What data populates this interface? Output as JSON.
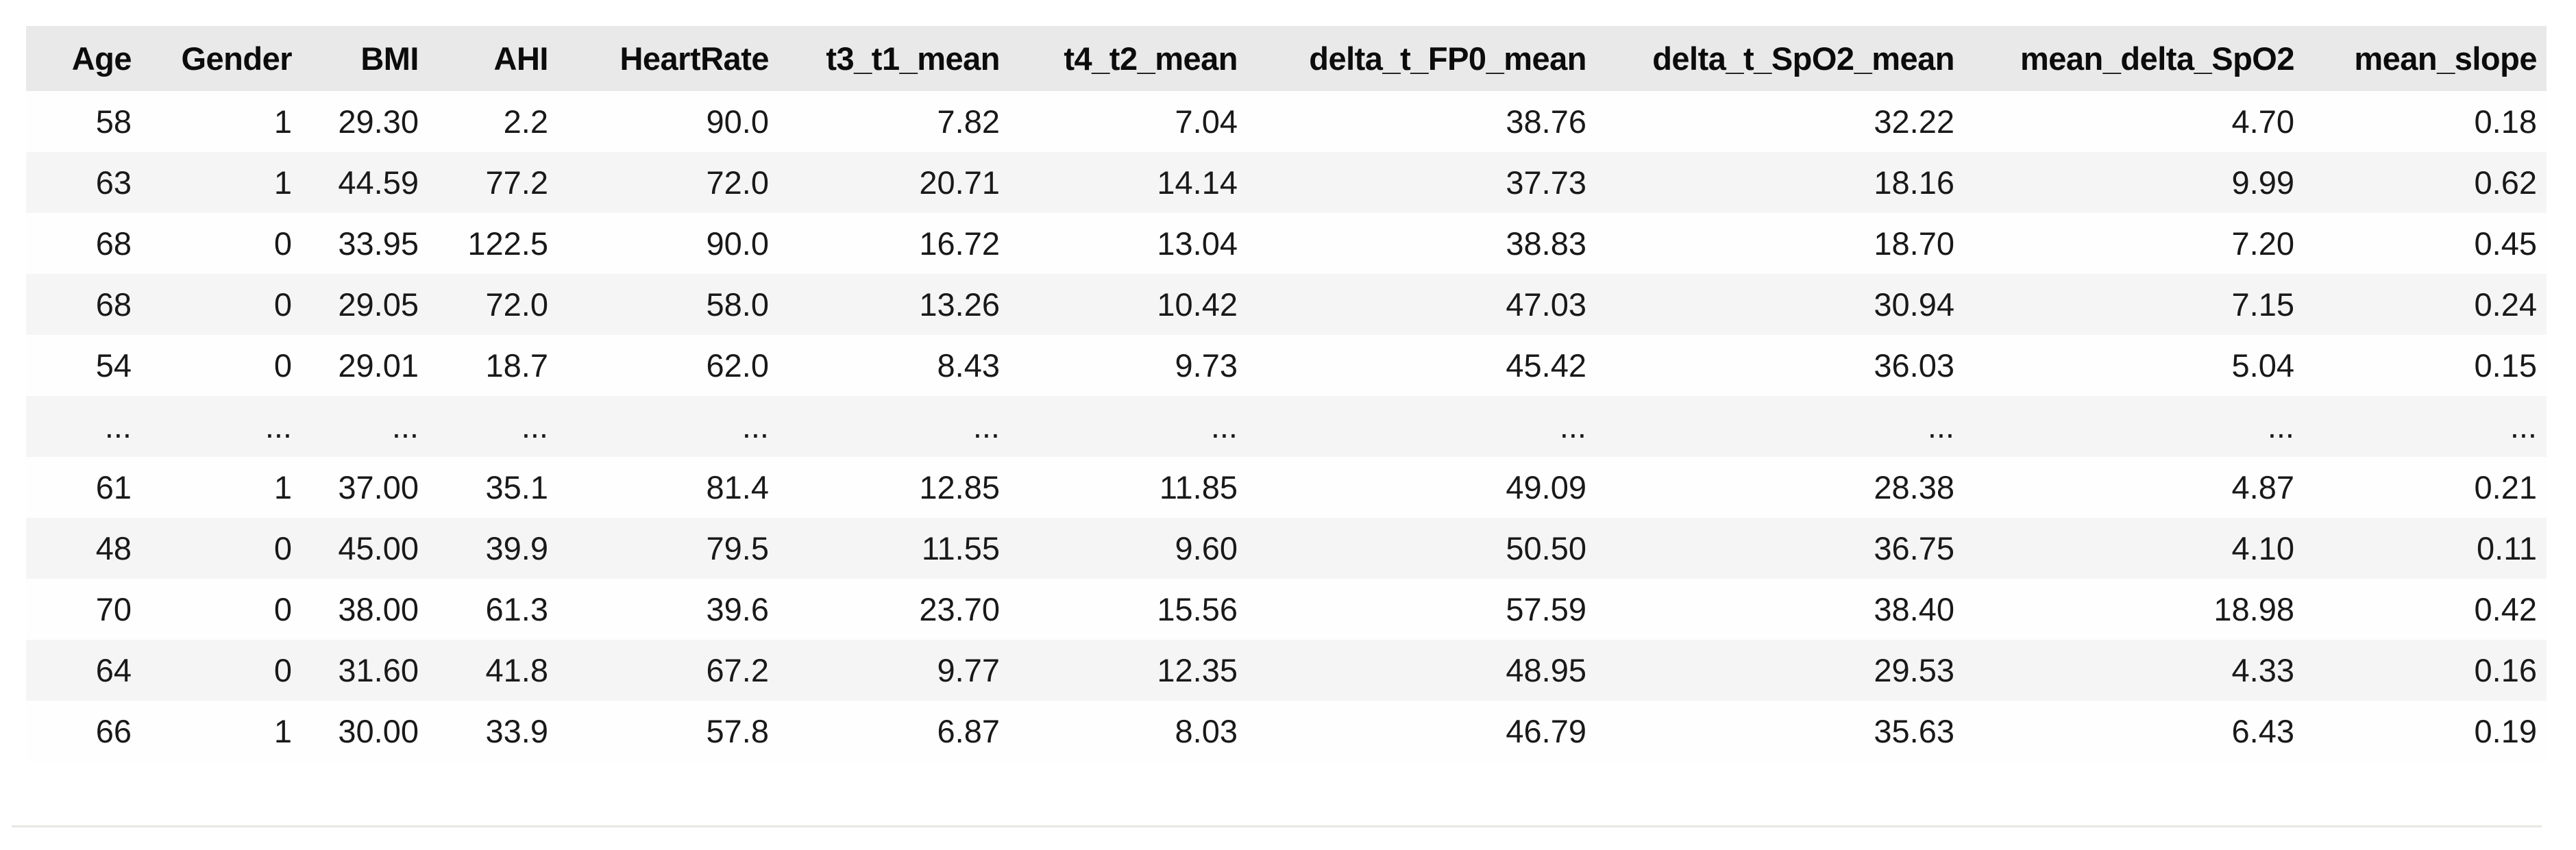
{
  "colors": {
    "page_background": "#ffffff",
    "header_background": "#e9e9e9",
    "stripe_background": "#f5f5f6",
    "row_background": "#fefefe",
    "header_text": "#0c0c0c",
    "cell_text": "#191919",
    "rule_line": "#e9e7e3"
  },
  "chart_data": {
    "type": "table",
    "title": "",
    "columns": [
      "Age",
      "Gender",
      "BMI",
      "AHI",
      "HeartRate",
      "t3_t1_mean",
      "t4_t2_mean",
      "delta_t_FP0_mean",
      "delta_t_SpO2_mean",
      "mean_delta_SpO2",
      "mean_slope"
    ],
    "rows": [
      [
        "58",
        "1",
        "29.30",
        "2.2",
        "90.0",
        "7.82",
        "7.04",
        "38.76",
        "32.22",
        "4.70",
        "0.18"
      ],
      [
        "63",
        "1",
        "44.59",
        "77.2",
        "72.0",
        "20.71",
        "14.14",
        "37.73",
        "18.16",
        "9.99",
        "0.62"
      ],
      [
        "68",
        "0",
        "33.95",
        "122.5",
        "90.0",
        "16.72",
        "13.04",
        "38.83",
        "18.70",
        "7.20",
        "0.45"
      ],
      [
        "68",
        "0",
        "29.05",
        "72.0",
        "58.0",
        "13.26",
        "10.42",
        "47.03",
        "30.94",
        "7.15",
        "0.24"
      ],
      [
        "54",
        "0",
        "29.01",
        "18.7",
        "62.0",
        "8.43",
        "9.73",
        "45.42",
        "36.03",
        "5.04",
        "0.15"
      ],
      [
        "...",
        "...",
        "...",
        "...",
        "...",
        "...",
        "...",
        "...",
        "...",
        "...",
        "..."
      ],
      [
        "61",
        "1",
        "37.00",
        "35.1",
        "81.4",
        "12.85",
        "11.85",
        "49.09",
        "28.38",
        "4.87",
        "0.21"
      ],
      [
        "48",
        "0",
        "45.00",
        "39.9",
        "79.5",
        "11.55",
        "9.60",
        "50.50",
        "36.75",
        "4.10",
        "0.11"
      ],
      [
        "70",
        "0",
        "38.00",
        "61.3",
        "39.6",
        "23.70",
        "15.56",
        "57.59",
        "38.40",
        "18.98",
        "0.42"
      ],
      [
        "64",
        "0",
        "31.60",
        "41.8",
        "67.2",
        "9.77",
        "12.35",
        "48.95",
        "29.53",
        "4.33",
        "0.16"
      ],
      [
        "66",
        "1",
        "30.00",
        "33.9",
        "57.8",
        "6.87",
        "8.03",
        "46.79",
        "35.63",
        "6.43",
        "0.19"
      ]
    ],
    "layout_hints": {
      "alignment": "right",
      "striped_rows": true,
      "ellipsis_row_index": 5,
      "grid": "off"
    }
  }
}
